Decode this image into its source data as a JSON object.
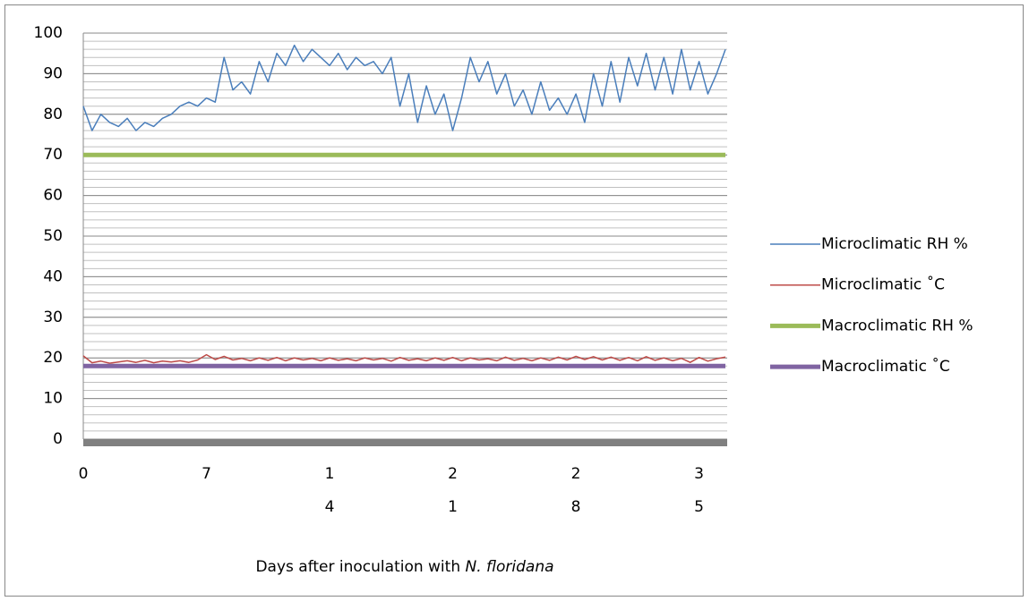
{
  "chart_data": {
    "type": "line",
    "x_label": "Days after inoculation with",
    "x_label_italic": "N. floridana",
    "x": [
      0,
      0.5,
      1,
      1.5,
      2,
      2.5,
      3,
      3.5,
      4,
      4.5,
      5,
      5.5,
      6,
      6.5,
      7,
      7.5,
      8,
      8.5,
      9,
      9.5,
      10,
      10.5,
      11,
      11.5,
      12,
      12.5,
      13,
      13.5,
      14,
      14.5,
      15,
      15.5,
      16,
      16.5,
      17,
      17.5,
      18,
      18.5,
      19,
      19.5,
      20,
      20.5,
      21,
      21.5,
      22,
      22.5,
      23,
      23.5,
      24,
      24.5,
      25,
      25.5,
      26,
      26.5,
      27,
      27.5,
      28,
      28.5,
      29,
      29.5,
      30,
      30.5,
      31,
      31.5,
      32,
      32.5,
      33,
      33.5,
      34,
      34.5,
      35,
      35.5,
      36,
      36.5
    ],
    "series": [
      {
        "name": "Microclimatic RH %",
        "color": "#4a7ebb",
        "width": 1.5,
        "values": [
          82,
          76,
          80,
          78,
          77,
          79,
          76,
          78,
          77,
          79,
          80,
          82,
          83,
          82,
          84,
          83,
          94,
          86,
          88,
          85,
          93,
          88,
          95,
          92,
          97,
          93,
          96,
          94,
          92,
          95,
          91,
          94,
          92,
          93,
          90,
          94,
          82,
          90,
          78,
          87,
          80,
          85,
          76,
          84,
          94,
          88,
          93,
          85,
          90,
          82,
          86,
          80,
          88,
          81,
          84,
          80,
          85,
          78,
          90,
          82,
          93,
          83,
          94,
          87,
          95,
          86,
          94,
          85,
          96,
          86,
          93,
          85,
          90,
          96
        ]
      },
      {
        "name": "Microclimatic ˚C",
        "color": "#be4b48",
        "width": 1.5,
        "values": [
          20.5,
          18.8,
          19.2,
          18.7,
          19,
          19.3,
          18.9,
          19.4,
          18.8,
          19.2,
          19,
          19.3,
          18.9,
          19.5,
          20.8,
          19.6,
          20.4,
          19.5,
          19.9,
          19.3,
          20,
          19.4,
          20.1,
          19.3,
          20,
          19.5,
          19.9,
          19.3,
          20,
          19.4,
          19.8,
          19.3,
          20,
          19.5,
          19.9,
          19.2,
          20.1,
          19.4,
          19.8,
          19.3,
          20,
          19.4,
          20.1,
          19.3,
          20,
          19.5,
          19.8,
          19.3,
          20.2,
          19.4,
          19.9,
          19.3,
          20,
          19.4,
          20.2,
          19.5,
          20.4,
          19.6,
          20.3,
          19.5,
          20.2,
          19.4,
          20.1,
          19.3,
          20.3,
          19.4,
          20,
          19.3,
          19.9,
          18.9,
          20.1,
          19.2,
          19.8,
          20.2
        ]
      },
      {
        "name": "Macroclimatic RH %",
        "color": "#9bbb59",
        "width": 5,
        "values": [
          70,
          70,
          70,
          70,
          70,
          70,
          70,
          70,
          70,
          70,
          70,
          70,
          70,
          70,
          70,
          70,
          70,
          70,
          70,
          70,
          70,
          70,
          70,
          70,
          70,
          70,
          70,
          70,
          70,
          70,
          70,
          70,
          70,
          70,
          70,
          70,
          70,
          70,
          70,
          70,
          70,
          70,
          70,
          70,
          70,
          70,
          70,
          70,
          70,
          70,
          70,
          70,
          70,
          70,
          70,
          70,
          70,
          70,
          70,
          70,
          70,
          70,
          70,
          70,
          70,
          70,
          70,
          70,
          70,
          70,
          70,
          70,
          70,
          70
        ]
      },
      {
        "name": "Macroclimatic ˚C",
        "color": "#8064a2",
        "width": 5,
        "values": [
          18,
          18,
          18,
          18,
          18,
          18,
          18,
          18,
          18,
          18,
          18,
          18,
          18,
          18,
          18,
          18,
          18,
          18,
          18,
          18,
          18,
          18,
          18,
          18,
          18,
          18,
          18,
          18,
          18,
          18,
          18,
          18,
          18,
          18,
          18,
          18,
          18,
          18,
          18,
          18,
          18,
          18,
          18,
          18,
          18,
          18,
          18,
          18,
          18,
          18,
          18,
          18,
          18,
          18,
          18,
          18,
          18,
          18,
          18,
          18,
          18,
          18,
          18,
          18,
          18,
          18,
          18,
          18,
          18,
          18,
          18,
          18,
          18,
          18
        ]
      }
    ],
    "xlim": [
      0,
      36.6
    ],
    "xticks": [
      0,
      7,
      14,
      21,
      28,
      35
    ],
    "ylim": [
      0,
      100
    ],
    "yticks": [
      0,
      10,
      20,
      30,
      40,
      50,
      60,
      70,
      80,
      90,
      100
    ],
    "minor_grid_step": 2,
    "grid": true,
    "legend": "right"
  }
}
